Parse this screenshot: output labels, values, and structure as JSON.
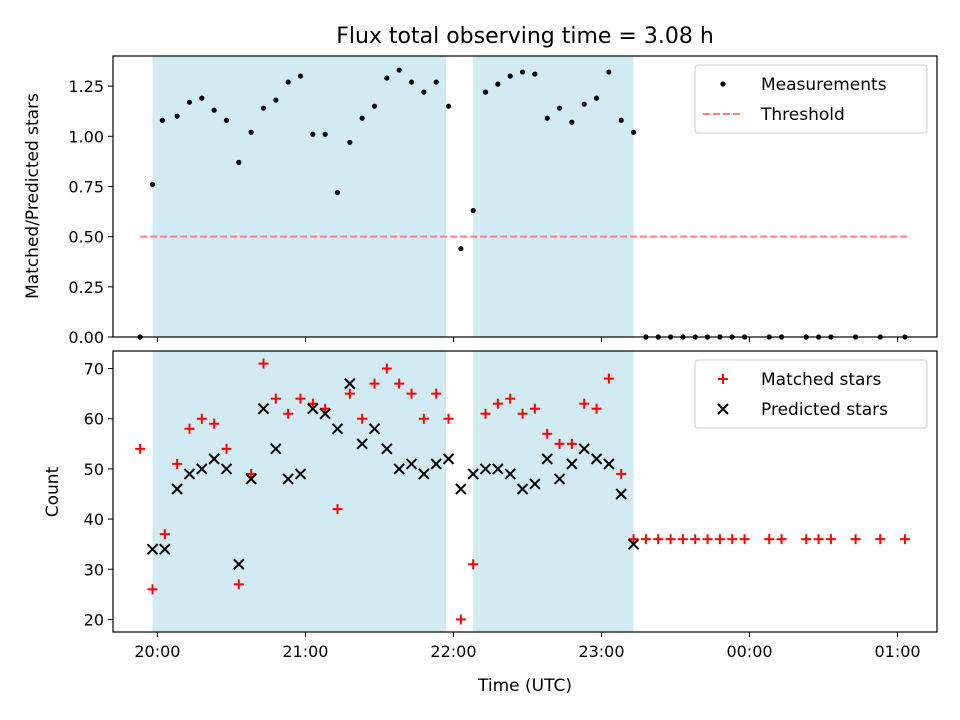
{
  "title": "Flux total observing time = 3.08 h",
  "colors": {
    "measurement": "#000000",
    "threshold": "#ff7f7f",
    "matched": "#ff0000",
    "predicted": "#000000",
    "band": "#add8e6"
  },
  "chart_data": [
    {
      "type": "scatter",
      "ylabel": "Matched/Predicted stars",
      "ylim": [
        0,
        1.4
      ],
      "yticks": [
        "0.00",
        "0.25",
        "0.50",
        "0.75",
        "1.00",
        "1.25"
      ],
      "ytick_values": [
        0,
        0.25,
        0.5,
        0.75,
        1.0,
        1.25
      ],
      "xlim": [
        "19:42",
        "01:16"
      ],
      "x_labels_hidden": true,
      "bands": [
        [
          "19:58",
          "21:57"
        ],
        [
          "22:08",
          "23:13"
        ]
      ],
      "threshold": {
        "name": "Threshold",
        "value": 0.5,
        "x": [
          "19:53",
          "01:04"
        ],
        "style": "dashed"
      },
      "legend": {
        "position": "top-right",
        "entries": [
          "Measurements",
          "Threshold"
        ]
      },
      "series": [
        {
          "name": "Measurements",
          "marker": "dot",
          "x": [
            "19:53",
            "19:58",
            "20:02",
            "20:08",
            "20:13",
            "20:18",
            "20:23",
            "20:28",
            "20:33",
            "20:38",
            "20:43",
            "20:48",
            "20:53",
            "20:58",
            "21:03",
            "21:08",
            "21:13",
            "21:18",
            "21:23",
            "21:28",
            "21:33",
            "21:38",
            "21:43",
            "21:48",
            "21:53",
            "21:58",
            "22:03",
            "22:08",
            "22:13",
            "22:18",
            "22:23",
            "22:28",
            "22:33",
            "22:38",
            "22:43",
            "22:48",
            "22:53",
            "22:58",
            "23:03",
            "23:08",
            "23:13",
            "23:18",
            "23:23",
            "23:28",
            "23:33",
            "23:38",
            "23:43",
            "23:48",
            "23:53",
            "23:58",
            "00:08",
            "00:13",
            "00:23",
            "00:28",
            "00:33",
            "00:43",
            "00:53",
            "01:03"
          ],
          "y": [
            0,
            0.76,
            1.08,
            1.1,
            1.17,
            1.19,
            1.13,
            1.08,
            0.87,
            1.02,
            1.14,
            1.18,
            1.27,
            1.3,
            1.01,
            1.01,
            0.72,
            0.97,
            1.09,
            1.15,
            1.29,
            1.33,
            1.27,
            1.22,
            1.27,
            1.15,
            0.44,
            0.63,
            1.22,
            1.26,
            1.3,
            1.32,
            1.31,
            1.09,
            1.14,
            1.07,
            1.16,
            1.19,
            1.32,
            1.08,
            1.02,
            0,
            0,
            0,
            0,
            0,
            0,
            0,
            0,
            0,
            0,
            0,
            0,
            0,
            0,
            0,
            0,
            0
          ]
        }
      ]
    },
    {
      "type": "scatter",
      "xlabel": "Time (UTC)",
      "ylabel": "Count",
      "ylim": [
        17.5,
        73.5
      ],
      "yticks": [
        "20",
        "30",
        "40",
        "50",
        "60",
        "70"
      ],
      "ytick_values": [
        20,
        30,
        40,
        50,
        60,
        70
      ],
      "xlim": [
        "19:42",
        "01:16"
      ],
      "xticks": [
        "20:00",
        "21:00",
        "22:00",
        "23:00",
        "00:00",
        "01:00"
      ],
      "bands": [
        [
          "19:58",
          "21:57"
        ],
        [
          "22:08",
          "23:13"
        ]
      ],
      "legend": {
        "position": "top-right",
        "entries": [
          "Matched stars",
          "Predicted stars"
        ]
      },
      "series": [
        {
          "name": "Matched stars",
          "marker": "plus",
          "x": [
            "19:53",
            "19:58",
            "20:03",
            "20:08",
            "20:13",
            "20:18",
            "20:23",
            "20:28",
            "20:33",
            "20:38",
            "20:43",
            "20:48",
            "20:53",
            "20:58",
            "21:03",
            "21:08",
            "21:13",
            "21:18",
            "21:23",
            "21:28",
            "21:33",
            "21:38",
            "21:43",
            "21:48",
            "21:53",
            "21:58",
            "22:03",
            "22:08",
            "22:13",
            "22:18",
            "22:23",
            "22:28",
            "22:33",
            "22:38",
            "22:43",
            "22:48",
            "22:53",
            "22:58",
            "23:03",
            "23:08",
            "23:13",
            "23:18",
            "23:23",
            "23:28",
            "23:33",
            "23:38",
            "23:43",
            "23:48",
            "23:53",
            "23:58",
            "00:08",
            "00:13",
            "00:23",
            "00:28",
            "00:33",
            "00:43",
            "00:53",
            "01:03"
          ],
          "y": [
            54,
            26,
            37,
            51,
            58,
            60,
            59,
            54,
            27,
            49,
            71,
            64,
            61,
            64,
            63,
            62,
            42,
            65,
            60,
            67,
            70,
            67,
            65,
            60,
            65,
            60,
            20,
            31,
            61,
            63,
            64,
            61,
            62,
            57,
            55,
            55,
            63,
            62,
            68,
            49,
            36,
            36,
            36,
            36,
            36,
            36,
            36,
            36,
            36,
            36,
            36,
            36,
            36,
            36,
            36,
            36,
            36,
            36
          ]
        },
        {
          "name": "Predicted stars",
          "marker": "x",
          "x": [
            "19:58",
            "20:03",
            "20:08",
            "20:13",
            "20:18",
            "20:23",
            "20:28",
            "20:33",
            "20:38",
            "20:43",
            "20:48",
            "20:53",
            "20:58",
            "21:03",
            "21:08",
            "21:13",
            "21:18",
            "21:23",
            "21:28",
            "21:33",
            "21:38",
            "21:43",
            "21:48",
            "21:53",
            "21:58",
            "22:03",
            "22:08",
            "22:13",
            "22:18",
            "22:23",
            "22:28",
            "22:33",
            "22:38",
            "22:43",
            "22:48",
            "22:53",
            "22:58",
            "23:03",
            "23:08",
            "23:13"
          ],
          "y": [
            34,
            34,
            46,
            49,
            50,
            52,
            50,
            31,
            48,
            62,
            54,
            48,
            49,
            62,
            61,
            58,
            67,
            55,
            58,
            54,
            50,
            51,
            49,
            51,
            52,
            46,
            49,
            50,
            50,
            49,
            46,
            47,
            52,
            48,
            51,
            54,
            52,
            51,
            45,
            35
          ]
        }
      ]
    }
  ]
}
